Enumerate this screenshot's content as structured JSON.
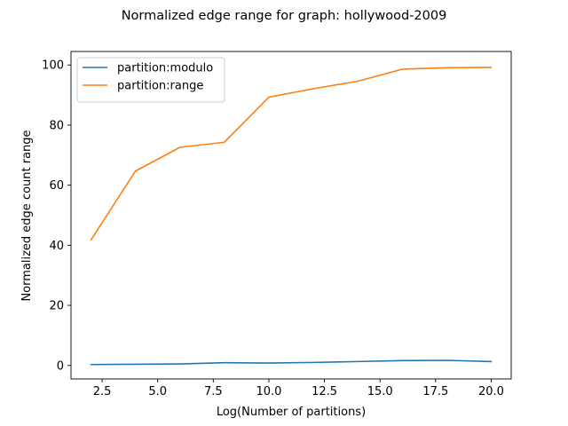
{
  "chart_data": {
    "type": "line",
    "title": "Normalized edge range for graph: hollywood-2009",
    "xlabel": "Log(Number of partitions)",
    "ylabel": "Normalized edge count range",
    "xlim": [
      1.1,
      20.9
    ],
    "ylim": [
      -4.5,
      104.5
    ],
    "xticks": [
      2.5,
      5.0,
      7.5,
      10.0,
      12.5,
      15.0,
      17.5,
      20.0
    ],
    "xtick_labels": [
      "2.5",
      "5.0",
      "7.5",
      "10.0",
      "12.5",
      "15.0",
      "17.5",
      "20.0"
    ],
    "yticks": [
      0,
      20,
      40,
      60,
      80,
      100
    ],
    "ytick_labels": [
      "0",
      "20",
      "40",
      "60",
      "80",
      "100"
    ],
    "grid": false,
    "legend_position": "top-left",
    "x": [
      2,
      4,
      6,
      8,
      10,
      12,
      14,
      16,
      18,
      20
    ],
    "series": [
      {
        "name": "partition:modulo",
        "color": "#1f77b4",
        "values": [
          0.3,
          0.4,
          0.5,
          0.9,
          0.8,
          1.0,
          1.3,
          1.6,
          1.7,
          1.3
        ]
      },
      {
        "name": "partition:range",
        "color": "#ff7f0e",
        "values": [
          41.8,
          64.7,
          72.6,
          74.3,
          89.3,
          92.1,
          94.6,
          98.6,
          99.1,
          99.2
        ]
      }
    ]
  }
}
